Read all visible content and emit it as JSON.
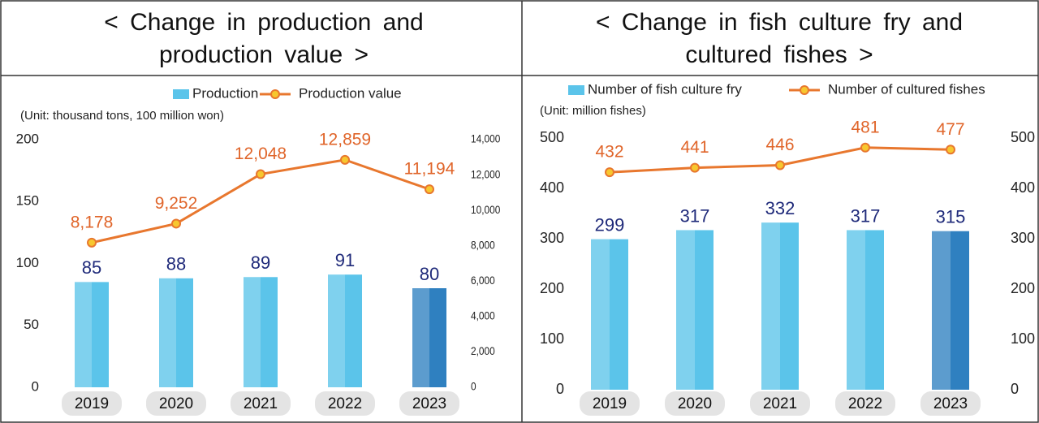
{
  "chart_data": [
    {
      "type": "bar_line",
      "title": "< Change in production and production value >",
      "unit": "(Unit: thousand tons, 100 million won)",
      "categories": [
        "2019",
        "2020",
        "2021",
        "2022",
        "2023"
      ],
      "series": [
        {
          "name": "Production",
          "type": "bar",
          "color": "#5bc4ea",
          "colors": [
            "#5bc4ea",
            "#5bc4ea",
            "#5bc4ea",
            "#5bc4ea",
            "#2f80c0"
          ],
          "values": [
            85,
            88,
            89,
            91,
            80
          ]
        },
        {
          "name": "Production value",
          "type": "line",
          "axis": "y2",
          "color": "#e8772e",
          "values": [
            8178,
            9252,
            12048,
            12859,
            11194
          ],
          "value_labels": [
            "8,178",
            "9,252",
            "12,048",
            "12,859",
            "11,194"
          ]
        }
      ],
      "ylim": [
        0,
        200
      ],
      "yticks": [
        0,
        50,
        100,
        150,
        200
      ],
      "y2lim": [
        0,
        14000
      ],
      "y2ticks": [
        0,
        {
          "value": 2000,
          "label": "2,000"
        },
        {
          "value": 4000,
          "label": "4,000"
        },
        {
          "value": 6000,
          "label": "6,000"
        },
        {
          "value": 8000,
          "label": "8,000"
        },
        {
          "value": 10000,
          "label": "10,000"
        },
        {
          "value": 12000,
          "label": "12,000"
        },
        {
          "value": 14000,
          "label": "14,000"
        }
      ],
      "legend": "top"
    },
    {
      "type": "bar_line",
      "title": "< Change in fish culture fry and cultured fishes >",
      "unit": "(Unit: million fishes)",
      "categories": [
        "2019",
        "2020",
        "2021",
        "2022",
        "2023"
      ],
      "series": [
        {
          "name": "Number of fish culture fry",
          "type": "bar",
          "color": "#5bc4ea",
          "colors": [
            "#5bc4ea",
            "#5bc4ea",
            "#5bc4ea",
            "#5bc4ea",
            "#2f80c0"
          ],
          "values": [
            299,
            317,
            332,
            317,
            315
          ]
        },
        {
          "name": "Number of cultured fishes",
          "type": "line",
          "axis": "y2",
          "color": "#e8772e",
          "values": [
            432,
            441,
            446,
            481,
            477
          ]
        }
      ],
      "ylim": [
        0,
        500
      ],
      "yticks": [
        0,
        100,
        200,
        300,
        400,
        500
      ],
      "y2lim": [
        0,
        500
      ],
      "y2ticks": [
        0,
        100,
        200,
        300,
        400,
        500
      ],
      "legend": "top"
    }
  ]
}
